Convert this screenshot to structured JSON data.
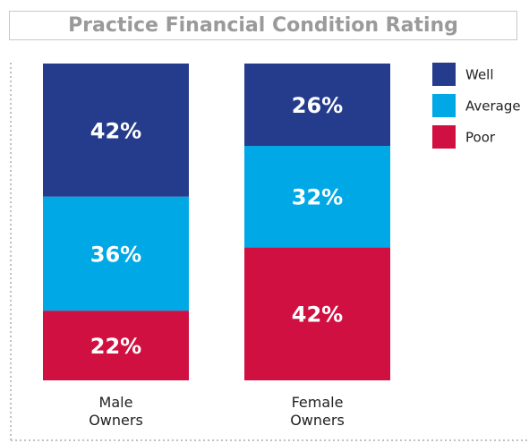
{
  "chart_data": {
    "type": "stacked_bar",
    "title": "Practice Financial Condition Rating",
    "categories": [
      "Male Owners",
      "Female Owners"
    ],
    "series": [
      {
        "name": "Well",
        "color": "#253c8c",
        "values": [
          42,
          26
        ],
        "value_labels": [
          "42%",
          "26%"
        ]
      },
      {
        "name": "Average",
        "color": "#00a9e6",
        "values": [
          36,
          32
        ],
        "value_labels": [
          "36%",
          "32%"
        ]
      },
      {
        "name": "Poor",
        "color": "#d01040",
        "values": [
          22,
          42
        ],
        "value_labels": [
          "22%",
          "42%"
        ]
      }
    ],
    "ylim": [
      0,
      100
    ],
    "legend": "right"
  }
}
